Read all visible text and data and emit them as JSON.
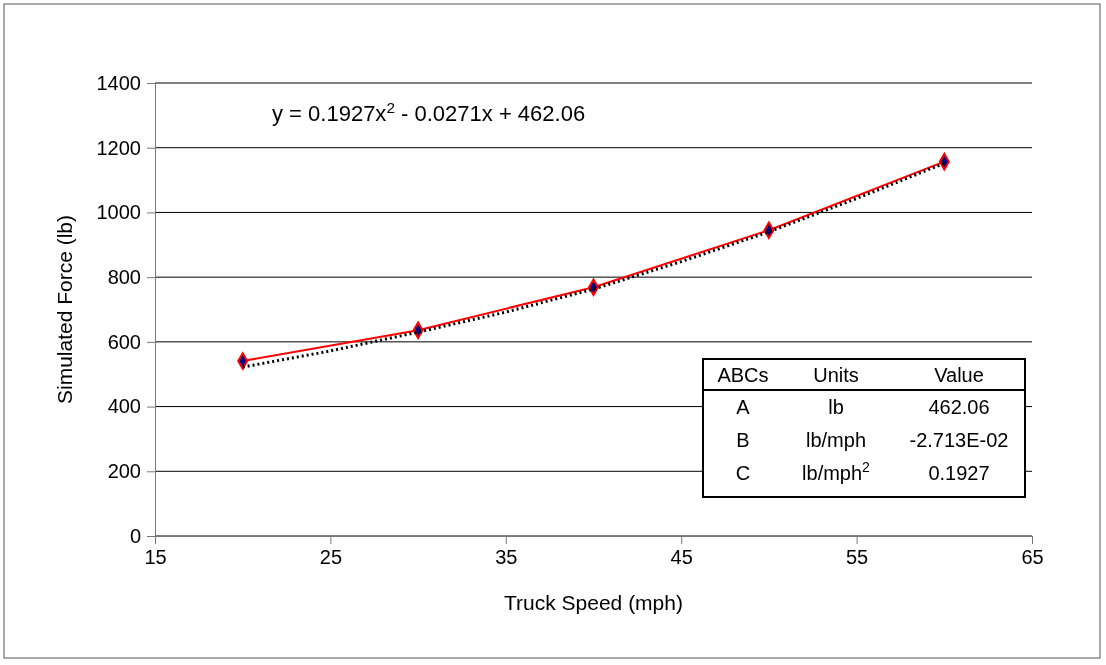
{
  "chart_data": {
    "type": "line",
    "xlabel": "Truck Speed (mph)",
    "ylabel": "Simulated Force (lb)",
    "xlim": [
      15,
      65
    ],
    "xticks": [
      15,
      25,
      35,
      45,
      55,
      65
    ],
    "ylim": [
      0,
      1400
    ],
    "yticks": [
      0,
      200,
      400,
      600,
      800,
      1000,
      1200,
      1400
    ],
    "grid": "y",
    "series": [
      {
        "color": "#ff0000",
        "marker": "diamond",
        "line_style": "solid",
        "x": [
          20,
          30,
          40,
          50,
          60
        ],
        "values": [
          541,
          636,
          769,
          945,
          1157
        ]
      },
      {
        "color": "#000000",
        "marker": "none",
        "line_style": "dotted",
        "x": [
          20,
          25,
          30,
          35,
          40,
          45,
          50,
          55,
          60
        ],
        "values": [
          522,
          572,
          630,
          692,
          763,
          848,
          940,
          1043,
          1152
        ]
      }
    ],
    "annotations": [
      "y = 0.1927x$^{2}$ - 0.0271x + 462.06",
      "ABCs",
      "Units",
      "Value",
      "A",
      "lb",
      "462.06",
      "B",
      "lb/mph",
      "-2.713E-02",
      "C",
      "lb/mph$^{2}$",
      "0.1927"
    ]
  }
}
